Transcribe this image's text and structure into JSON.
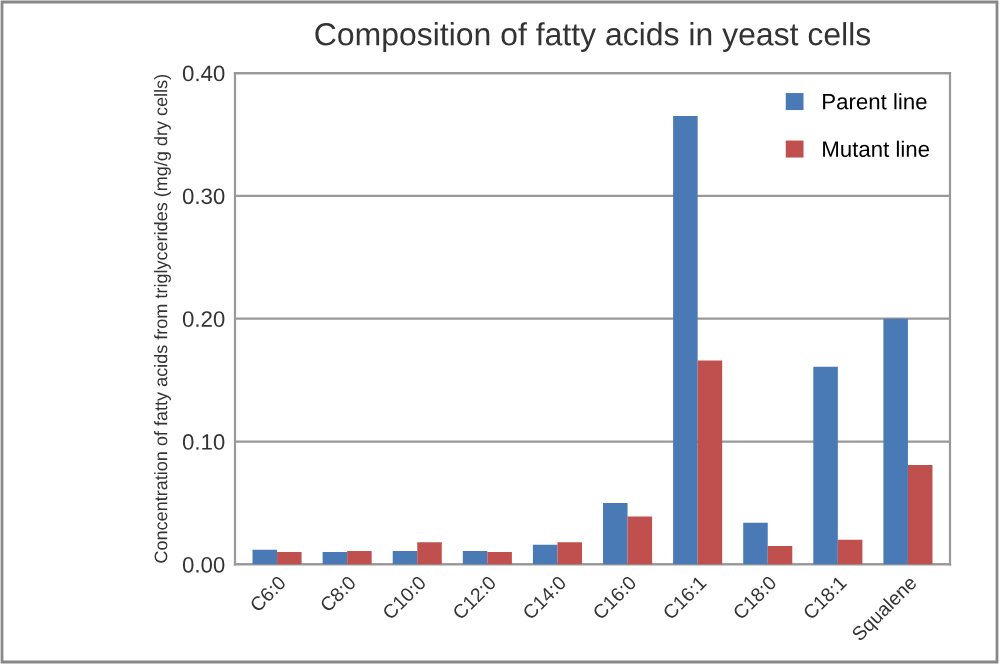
{
  "chart_data": {
    "type": "bar",
    "title": "Composition of fatty acids in yeast cells",
    "ylabel": "Concentration of fatty acids from triglycerides (mg/g dry cells)",
    "categories": [
      "C6:0",
      "C8:0",
      "C10:0",
      "C12:0",
      "C14:0",
      "C16:0",
      "C16:1",
      "C18:0",
      "C18:1",
      "Squalene"
    ],
    "series": [
      {
        "name": "Parent line",
        "color": "#4a7ab5",
        "values": [
          0.012,
          0.01,
          0.011,
          0.011,
          0.016,
          0.05,
          0.365,
          0.034,
          0.161,
          0.2
        ]
      },
      {
        "name": "Mutant line",
        "color": "#c0504d",
        "values": [
          0.01,
          0.011,
          0.018,
          0.01,
          0.018,
          0.039,
          0.166,
          0.015,
          0.02,
          0.081
        ]
      }
    ],
    "ylim": [
      0,
      0.4
    ],
    "yticks": [
      {
        "value": 0,
        "label": "0.00"
      },
      {
        "value": 0.1,
        "label": "0.10"
      },
      {
        "value": 0.2,
        "label": "0.20"
      },
      {
        "value": 0.3,
        "label": "0.30"
      },
      {
        "value": 0.4,
        "label": "0.40"
      }
    ],
    "grid": "y",
    "legend": "top right"
  }
}
